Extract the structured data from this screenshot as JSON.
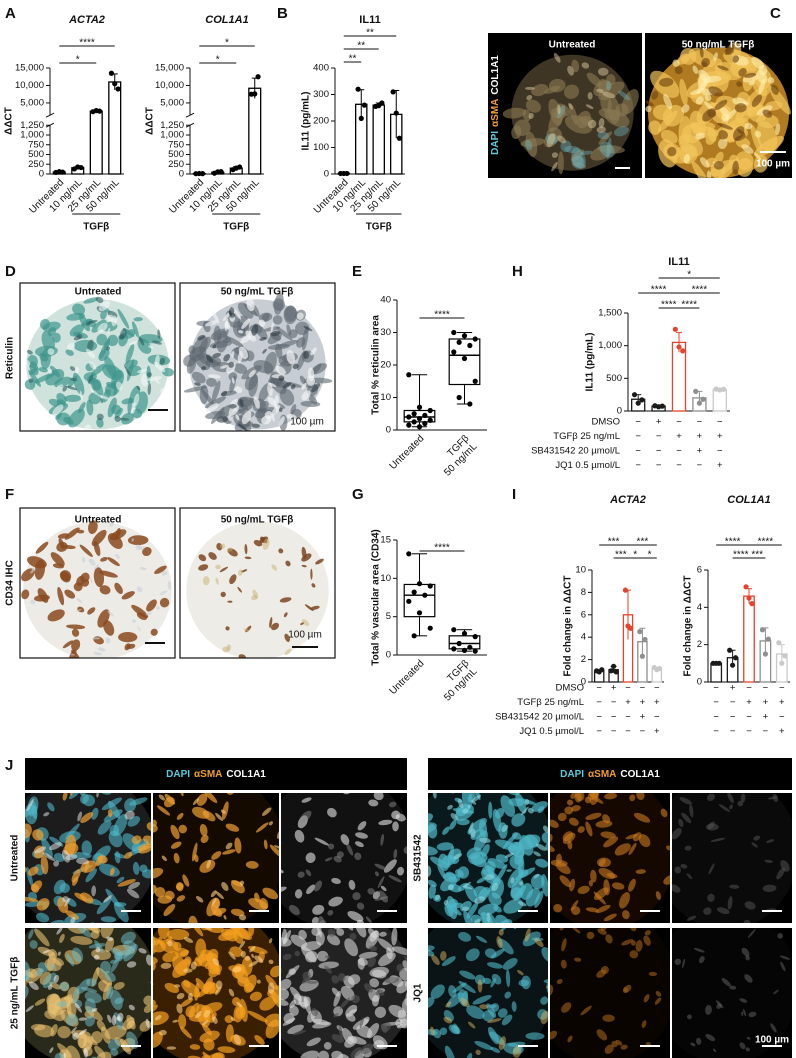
{
  "panel_labels": [
    "A",
    "B",
    "C",
    "D",
    "E",
    "F",
    "G",
    "H",
    "I",
    "J"
  ],
  "chart_data": [
    {
      "type": "bar",
      "title": "ACTA2",
      "y_label": "ΔΔCT",
      "color": "#000000",
      "categories": [
        "Untreated",
        "10 ng/mL",
        "25 ng/mL",
        "50 ng/mL"
      ],
      "group": {
        "label": "TGFβ",
        "from": 1,
        "to": 3
      },
      "values": [
        50,
        160,
        2650,
        11000
      ],
      "errors": [
        10,
        25,
        150,
        2300
      ],
      "points": [
        [
          40,
          60,
          50
        ],
        [
          130,
          180,
          165
        ],
        [
          2500,
          2800,
          2650
        ],
        [
          13500,
          10500,
          9000
        ]
      ],
      "ylim": [
        0,
        15000
      ],
      "ybreak": [
        1250,
        1500
      ],
      "yticks": [
        0,
        250,
        500,
        750,
        {
          "value": 1000,
          "label": "1,000"
        },
        {
          "value": 1250,
          "label": "1,250"
        },
        {
          "value": 5000,
          "label": "5,000"
        },
        {
          "value": 10000,
          "label": "10,000"
        },
        {
          "value": 15000,
          "label": "15,000"
        }
      ],
      "significance": [
        {
          "from": 0,
          "to": 3,
          "label": "****"
        },
        {
          "from": 0,
          "to": 2,
          "label": "*"
        }
      ]
    },
    {
      "type": "bar",
      "title": "COL1A1",
      "y_label": "ΔΔCT",
      "color": "#000000",
      "categories": [
        "Untreated",
        "10 ng/mL",
        "25 ng/mL",
        "50 ng/mL"
      ],
      "group": {
        "label": "TGFβ",
        "from": 1,
        "to": 3
      },
      "values": [
        10,
        45,
        150,
        9200
      ],
      "errors": [
        5,
        20,
        40,
        2900
      ],
      "points": [
        [
          8,
          12,
          10
        ],
        [
          20,
          55,
          60
        ],
        [
          110,
          150,
          180
        ],
        [
          7500,
          7600,
          12500
        ]
      ],
      "ylim": [
        0,
        15000
      ],
      "ybreak": [
        1250,
        1500
      ],
      "yticks": [
        0,
        250,
        500,
        750,
        {
          "value": 1000,
          "label": "1,000"
        },
        {
          "value": 1250,
          "label": "1,250"
        },
        {
          "value": 5000,
          "label": "5,000"
        },
        {
          "value": 10000,
          "label": "10,000"
        },
        {
          "value": 15000,
          "label": "15,000"
        }
      ],
      "significance": [
        {
          "from": 0,
          "to": 3,
          "label": "*"
        },
        {
          "from": 0,
          "to": 2,
          "label": "*"
        }
      ]
    },
    {
      "type": "bar",
      "title": "IL11",
      "y_label": "IL11 (pg/mL)",
      "color": "#000000",
      "categories": [
        "Untreated",
        "10 ng/mL",
        "25 ng/mL",
        "50 ng/mL"
      ],
      "group": {
        "label": "TGFβ",
        "from": 1,
        "to": 3
      },
      "values": [
        2,
        263,
        260,
        225
      ],
      "errors": [
        1,
        55,
        8,
        90
      ],
      "points": [
        [
          2,
          2,
          2
        ],
        [
          320,
          210,
          260
        ],
        [
          255,
          258,
          268
        ],
        [
          310,
          230,
          135
        ]
      ],
      "ylim": [
        0,
        400
      ],
      "yticks": [
        0,
        100,
        200,
        300,
        400
      ],
      "significance": [
        {
          "from": 0,
          "to": 1,
          "label": "**"
        },
        {
          "from": 0,
          "to": 2,
          "label": "**"
        },
        {
          "from": 0,
          "to": 3,
          "label": "**"
        }
      ]
    },
    {
      "type": "box",
      "y_label": "Total % reticulin area",
      "color": "#000000",
      "categories": [
        [
          "Untreated"
        ],
        [
          "TGFβ",
          "50 ng/mL"
        ]
      ],
      "boxes": [
        {
          "min": 1,
          "q1": 2.5,
          "median": 4,
          "q3": 6,
          "max": 17,
          "points": [
            17,
            7,
            6,
            5,
            4.5,
            4,
            3.5,
            3,
            2.5,
            2,
            1.5,
            1
          ]
        },
        {
          "min": 8,
          "q1": 14,
          "median": 23,
          "q3": 28,
          "max": 30,
          "points": [
            30,
            29,
            28,
            27,
            26,
            24,
            22,
            15,
            10,
            8
          ]
        }
      ],
      "ylim": [
        0,
        40
      ],
      "yticks": [
        0,
        10,
        20,
        30,
        40
      ],
      "significance": [
        {
          "from": 0,
          "to": 1,
          "label": "****"
        }
      ]
    },
    {
      "type": "box",
      "y_label": "Total % vascular area (CD34)",
      "color": "#000000",
      "categories": [
        [
          "Untreated"
        ],
        [
          "TGFβ",
          "50 ng/mL"
        ]
      ],
      "boxes": [
        {
          "min": 2.5,
          "q1": 5,
          "median": 7.8,
          "q3": 9.2,
          "max": 13.2,
          "points": [
            13.2,
            9.3,
            9,
            8.2,
            7.8,
            7,
            5.5,
            3.5,
            2.5
          ]
        },
        {
          "min": 0.5,
          "q1": 0.8,
          "median": 1.5,
          "q3": 2.5,
          "max": 3.3,
          "points": [
            3.3,
            2.8,
            2.4,
            1.5,
            1,
            0.8,
            0.6,
            0.5
          ]
        }
      ],
      "ylim": [
        0,
        15
      ],
      "yticks": [
        0,
        5,
        10,
        15
      ],
      "significance": [
        {
          "from": 0,
          "to": 1,
          "label": "****"
        }
      ]
    },
    {
      "type": "bar",
      "title": "IL11",
      "y_label": "IL11 (pg/mL)",
      "colors": [
        "#1a1a1a",
        "#1a1a1a",
        "#e5432d",
        "#8f8f8f",
        "#c9c9c9"
      ],
      "values": [
        180,
        75,
        1050,
        200,
        330
      ],
      "errors": [
        70,
        15,
        150,
        100,
        10
      ],
      "points": [
        [
          250,
          120,
          170
        ],
        [
          80,
          65,
          75
        ],
        [
          1250,
          980,
          920
        ],
        [
          300,
          120,
          180
        ],
        [
          335,
          322,
          333
        ]
      ],
      "ylim": [
        0,
        1500
      ],
      "yticks": [
        0,
        500,
        {
          "value": 1000,
          "label": "1,000"
        },
        {
          "value": 1500,
          "label": "1,500"
        }
      ],
      "treatments": [
        {
          "label": "DMSO",
          "signs": [
            "−",
            "+",
            "−",
            "−",
            "−"
          ]
        },
        {
          "label": "TGFβ 25 ng/mL",
          "signs": [
            "−",
            "−",
            "+",
            "+",
            "+"
          ]
        },
        {
          "label": "SB431542 20 µmol/L",
          "signs": [
            "−",
            "−",
            "−",
            "+",
            "−"
          ]
        },
        {
          "label": "JQ1 0.5 µmol/L",
          "signs": [
            "−",
            "−",
            "−",
            "−",
            "+"
          ]
        }
      ],
      "significance": [
        {
          "from": 1,
          "to": 4,
          "label": "*"
        },
        {
          "from": 0,
          "to": 2,
          "label": "****"
        },
        {
          "from": 2,
          "to": 4,
          "label": "****"
        },
        {
          "from": 1,
          "to": 2,
          "label": "****"
        },
        {
          "from": 2,
          "to": 3,
          "label": "****"
        }
      ]
    },
    {
      "type": "bar",
      "title": "ACTA2",
      "y_label": "Fold change in ΔΔCT",
      "colors": [
        "#1a1a1a",
        "#1a1a1a",
        "#e5432d",
        "#8f8f8f",
        "#c9c9c9"
      ],
      "values": [
        1.0,
        1.1,
        6.0,
        3.6,
        1.2
      ],
      "errors": [
        0.1,
        0.3,
        2.2,
        1.2,
        0.1
      ],
      "points": [
        [
          1,
          0.9,
          1.1
        ],
        [
          1.0,
          1.4,
          0.9
        ],
        [
          8.2,
          5.0,
          4.8
        ],
        [
          4.5,
          2.3,
          3.8
        ],
        [
          1.3,
          1.1,
          1.2
        ]
      ],
      "ylim": [
        0,
        10
      ],
      "yticks": [
        0,
        2,
        4,
        6,
        8,
        10
      ],
      "treatments": [
        {
          "label": "DMSO",
          "signs": [
            "−",
            "+",
            "−",
            "−",
            "−"
          ]
        },
        {
          "label": "TGFβ 25 ng/mL",
          "signs": [
            "−",
            "−",
            "+",
            "+",
            "+"
          ]
        },
        {
          "label": "SB431542 20 µmol/L",
          "signs": [
            "−",
            "−",
            "−",
            "+",
            "−"
          ]
        },
        {
          "label": "JQ1 0.5 µmol/L",
          "signs": [
            "−",
            "−",
            "−",
            "−",
            "+"
          ]
        }
      ],
      "significance": [
        {
          "from": 0,
          "to": 2,
          "label": "***"
        },
        {
          "from": 2,
          "to": 4,
          "label": "***"
        },
        {
          "from": 1,
          "to": 2,
          "label": "***"
        },
        {
          "from": 2,
          "to": 3,
          "label": "*"
        },
        {
          "from": 3,
          "to": 4,
          "label": "*"
        }
      ]
    },
    {
      "type": "bar",
      "title": "COL1A1",
      "y_label": "Fold change in ΔΔCT",
      "colors": [
        "#1a1a1a",
        "#1a1a1a",
        "#e5432d",
        "#8f8f8f",
        "#c9c9c9"
      ],
      "values": [
        1.0,
        1.3,
        4.6,
        2.2,
        1.5
      ],
      "errors": [
        0.05,
        0.4,
        0.4,
        0.7,
        0.5
      ],
      "points": [
        [
          1,
          1,
          1
        ],
        [
          1.7,
          0.9,
          1.3
        ],
        [
          5.1,
          4.5,
          4.2
        ],
        [
          2.8,
          1.5,
          2.3
        ],
        [
          2.1,
          1.0,
          1.4
        ]
      ],
      "ylim": [
        0,
        6
      ],
      "yticks": [
        0,
        2,
        4,
        6
      ],
      "treatments": [
        {
          "signs": [
            "−",
            "+",
            "−",
            "−",
            "−"
          ]
        },
        {
          "signs": [
            "−",
            "−",
            "+",
            "+",
            "+"
          ]
        },
        {
          "signs": [
            "−",
            "−",
            "−",
            "+",
            "−"
          ]
        },
        {
          "signs": [
            "−",
            "−",
            "−",
            "−",
            "+"
          ]
        }
      ],
      "significance": [
        {
          "from": 0,
          "to": 2,
          "label": "****"
        },
        {
          "from": 2,
          "to": 3,
          "label": "***"
        },
        {
          "from": 1,
          "to": 2,
          "label": "****"
        },
        {
          "from": 2,
          "to": 4,
          "label": "****"
        }
      ]
    }
  ],
  "panel_C": {
    "columns": [
      "Untreated",
      "50 ng/mL TGFβ"
    ],
    "stain": [
      "DAPI",
      "αSMA",
      "COL1A1"
    ],
    "scale_bar": "100 µm"
  },
  "panel_D": {
    "columns": [
      "Untreated",
      "50 ng/mL TGFβ"
    ],
    "row_label": "Reticulin",
    "scale_bar": "100 µm"
  },
  "panel_F": {
    "columns": [
      "Untreated",
      "50 ng/mL TGFβ"
    ],
    "row_label": "CD34 IHC",
    "scale_bar": "100 µm"
  },
  "panel_J": {
    "left": {
      "stain": [
        "DAPI",
        "αSMA",
        "COL1A1"
      ],
      "rows": [
        "Untreated",
        "25 ng/mL TGFβ"
      ]
    },
    "right": {
      "stain": [
        "DAPI",
        "αSMA",
        "COL1A1"
      ],
      "rows": [
        "SB431542",
        "JQ1"
      ]
    },
    "scale_bar": "100 µm"
  }
}
